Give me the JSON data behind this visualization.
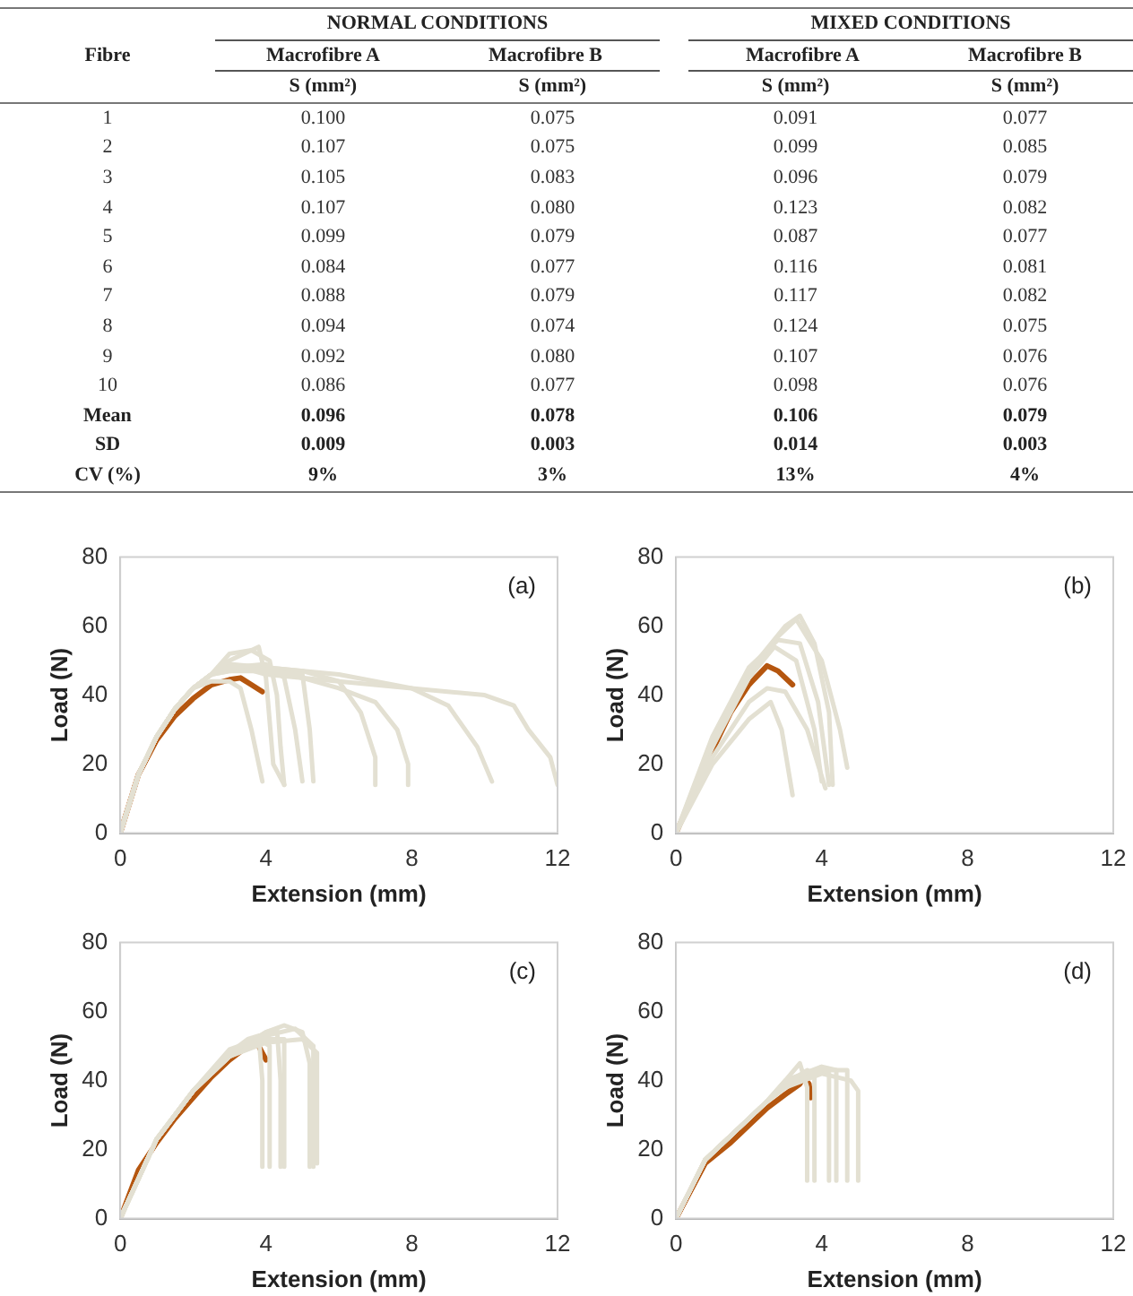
{
  "chart_data": [
    {
      "type": "heatmap",
      "ylabel": "Fibre",
      "categories": [
        "Macrofibre A",
        "Macrofibre B",
        "Macrofibre A",
        "Macrofibre B"
      ],
      "annotations": [
        "NORMAL CONDITIONS",
        "MIXED CONDITIONS",
        "S (mm²)",
        "S (mm²)",
        "S (mm²)",
        "S (mm²)"
      ],
      "y_categories": [
        "1",
        "2",
        "3",
        "4",
        "5",
        "6",
        "7",
        "8",
        "9",
        "10",
        "Mean",
        "SD",
        "CV (%)"
      ],
      "cells": [
        [
          0.1,
          0.075,
          0.091,
          0.077
        ],
        [
          0.107,
          0.075,
          0.099,
          0.085
        ],
        [
          0.105,
          0.083,
          0.096,
          0.079
        ],
        [
          0.107,
          0.08,
          0.123,
          0.082
        ],
        [
          0.099,
          0.079,
          0.087,
          0.077
        ],
        [
          0.084,
          0.077,
          0.116,
          0.081
        ],
        [
          0.088,
          0.079,
          0.117,
          0.082
        ],
        [
          0.094,
          0.074,
          0.124,
          0.075
        ],
        [
          0.092,
          0.08,
          0.107,
          0.076
        ],
        [
          0.086,
          0.077,
          0.098,
          0.076
        ],
        [
          0.096,
          0.078,
          0.106,
          0.079
        ],
        [
          0.009,
          0.003,
          0.014,
          0.003
        ],
        [
          9,
          3,
          13,
          4
        ]
      ],
      "cell_labels": [
        [
          "0.100",
          "0.075",
          "0.091",
          "0.077"
        ],
        [
          "0.107",
          "0.075",
          "0.099",
          "0.085"
        ],
        [
          "0.105",
          "0.083",
          "0.096",
          "0.079"
        ],
        [
          "0.107",
          "0.080",
          "0.123",
          "0.082"
        ],
        [
          "0.099",
          "0.079",
          "0.087",
          "0.077"
        ],
        [
          "0.084",
          "0.077",
          "0.116",
          "0.081"
        ],
        [
          "0.088",
          "0.079",
          "0.117",
          "0.082"
        ],
        [
          "0.094",
          "0.074",
          "0.124",
          "0.075"
        ],
        [
          "0.092",
          "0.080",
          "0.107",
          "0.076"
        ],
        [
          "0.086",
          "0.077",
          "0.098",
          "0.076"
        ],
        [
          "0.096",
          "0.078",
          "0.106",
          "0.079"
        ],
        [
          "0.009",
          "0.003",
          "0.014",
          "0.003"
        ],
        [
          "9%",
          "3%",
          "13%",
          "4%"
        ]
      ]
    },
    {
      "type": "line",
      "xlabel": "Extension (mm)",
      "ylabel": "Load (N)",
      "annotations": [
        "(a)"
      ],
      "xlim": [
        0,
        12
      ],
      "xticks": [
        0,
        4,
        8,
        12
      ],
      "ylim": [
        0,
        80
      ],
      "yticks": [
        0,
        20,
        40,
        60,
        80
      ],
      "grid": false,
      "legend": false,
      "marker": "none",
      "line_style": "solid",
      "series": [
        {
          "color": "#e3e0d2",
          "x": [
            0,
            0.5,
            1,
            1.5,
            2,
            2.5,
            3,
            3.3,
            3.6,
            3.9
          ],
          "values": [
            0,
            17,
            28,
            36,
            42,
            44,
            44,
            42,
            30,
            15
          ]
        },
        {
          "color": "#e3e0d2",
          "x": [
            0,
            0.5,
            1,
            1.5,
            2,
            2.5,
            3,
            3.8,
            4,
            4.2,
            4.5
          ],
          "values": [
            0,
            17,
            28,
            36,
            42,
            46,
            50,
            54,
            45,
            20,
            14
          ]
        },
        {
          "color": "#e3e0d2",
          "x": [
            0,
            0.5,
            1,
            1.5,
            2,
            2.5,
            3,
            4,
            4.5,
            4.8,
            5
          ],
          "values": [
            0,
            17,
            28,
            36,
            42,
            46,
            48,
            49,
            45,
            30,
            15
          ]
        },
        {
          "color": "#e3e0d2",
          "x": [
            0,
            0.5,
            1,
            1.5,
            2,
            2.5,
            3,
            4,
            5,
            5.2,
            5.3
          ],
          "values": [
            0,
            17,
            28,
            36,
            42,
            46,
            47,
            47,
            46,
            30,
            15
          ]
        },
        {
          "color": "#e3e0d2",
          "x": [
            0,
            0.5,
            1,
            1.5,
            2,
            2.5,
            3,
            4,
            5,
            6,
            6.6,
            7,
            7
          ],
          "values": [
            0,
            17,
            28,
            36,
            42,
            46,
            47,
            48,
            47,
            44,
            35,
            22,
            14
          ]
        },
        {
          "color": "#e3e0d2",
          "x": [
            0,
            0.5,
            1,
            1.5,
            2,
            2.5,
            3,
            4,
            5,
            6,
            7,
            7.6,
            7.9,
            7.9
          ],
          "values": [
            0,
            17,
            28,
            36,
            42,
            46,
            48,
            47,
            45,
            42,
            38,
            30,
            20,
            14
          ]
        },
        {
          "color": "#e3e0d2",
          "x": [
            0,
            0.5,
            1,
            1.5,
            2,
            2.5,
            3,
            4,
            6,
            8,
            9,
            9.8,
            10.2
          ],
          "values": [
            0,
            17,
            28,
            36,
            42,
            46,
            49,
            48,
            46,
            42,
            37,
            25,
            15
          ]
        },
        {
          "color": "#e3e0d2",
          "x": [
            0,
            0.5,
            1,
            1.5,
            2,
            2.5,
            3,
            4,
            6,
            8,
            10,
            10.8,
            11.2,
            11.8,
            12
          ],
          "values": [
            0,
            17,
            28,
            36,
            42,
            46,
            49,
            46,
            44,
            42,
            40,
            37,
            30,
            22,
            14
          ]
        },
        {
          "color": "#e3e0d2",
          "x": [
            0,
            0.5,
            1,
            1.5,
            2,
            2.5,
            3,
            3.6,
            4.1,
            4.3,
            4.4,
            4.5
          ],
          "values": [
            0,
            17,
            28,
            36,
            42,
            46,
            52,
            53,
            50,
            40,
            25,
            14
          ]
        },
        {
          "color": "#b5560f",
          "x": [
            0,
            0.5,
            1,
            1.5,
            2,
            2.5,
            3,
            3.3,
            3.6,
            3.9
          ],
          "values": [
            0,
            17,
            27,
            34,
            39,
            43,
            44.5,
            45,
            43,
            41
          ]
        }
      ]
    },
    {
      "type": "line",
      "xlabel": "Extension (mm)",
      "ylabel": "Load (N)",
      "annotations": [
        "(b)"
      ],
      "xlim": [
        0,
        12
      ],
      "xticks": [
        0,
        4,
        8,
        12
      ],
      "ylim": [
        0,
        80
      ],
      "yticks": [
        0,
        20,
        40,
        60,
        80
      ],
      "grid": false,
      "legend": false,
      "marker": "none",
      "line_style": "solid",
      "series": [
        {
          "color": "#e3e0d2",
          "x": [
            0,
            1,
            2,
            2.6,
            2.9,
            3.2
          ],
          "values": [
            0,
            20,
            33,
            38,
            30,
            11
          ]
        },
        {
          "color": "#e3e0d2",
          "x": [
            0,
            1,
            2,
            2.7,
            3.3,
            3.8,
            4.0
          ],
          "values": [
            0,
            27,
            45,
            54,
            50,
            30,
            15
          ]
        },
        {
          "color": "#e3e0d2",
          "x": [
            0,
            1,
            2,
            3,
            3.4,
            3.8,
            4.2,
            4.3
          ],
          "values": [
            0,
            25,
            47,
            60,
            63,
            55,
            35,
            14
          ]
        },
        {
          "color": "#e3e0d2",
          "x": [
            0,
            1,
            2,
            2.8,
            3.3,
            4,
            4.5,
            4.7
          ],
          "values": [
            0,
            25,
            45,
            57,
            62,
            50,
            30,
            19
          ]
        },
        {
          "color": "#e3e0d2",
          "x": [
            0,
            1,
            2,
            2.5,
            3,
            3.6,
            4.1
          ],
          "values": [
            0,
            22,
            38,
            42,
            41,
            30,
            13
          ]
        },
        {
          "color": "#e3e0d2",
          "x": [
            0,
            1,
            2,
            2.8,
            3.4,
            3.9,
            4.2
          ],
          "values": [
            0,
            28,
            48,
            56,
            55,
            38,
            14
          ]
        },
        {
          "color": "#b5560f",
          "x": [
            0,
            0.5,
            1,
            1.5,
            2,
            2.5,
            2.8,
            3.2
          ],
          "values": [
            0,
            12,
            24,
            35,
            43,
            48.5,
            47,
            43
          ]
        }
      ]
    },
    {
      "type": "line",
      "xlabel": "Extension (mm)",
      "ylabel": "Load (N)",
      "annotations": [
        "(c)"
      ],
      "xlim": [
        0,
        12
      ],
      "xticks": [
        0,
        4,
        8,
        12
      ],
      "ylim": [
        0,
        80
      ],
      "yticks": [
        0,
        20,
        40,
        60,
        80
      ],
      "grid": false,
      "legend": false,
      "marker": "none",
      "line_style": "solid",
      "series": [
        {
          "color": "#e3e0d2",
          "x": [
            0,
            1,
            2,
            3,
            3.5,
            3.8,
            3.9,
            3.9
          ],
          "values": [
            0,
            23,
            37,
            48,
            52,
            53,
            40,
            15
          ]
        },
        {
          "color": "#e3e0d2",
          "x": [
            0,
            1,
            2,
            3,
            3.8,
            4.1,
            4.1
          ],
          "values": [
            0,
            23,
            37,
            49,
            52,
            50,
            15
          ]
        },
        {
          "color": "#e3e0d2",
          "x": [
            0,
            1,
            2,
            3,
            4,
            4.3,
            4.4,
            4.4
          ],
          "values": [
            0,
            23,
            37,
            48,
            54,
            55,
            40,
            15
          ]
        },
        {
          "color": "#e3e0d2",
          "x": [
            0,
            1,
            2,
            3,
            4,
            4.5,
            4.5
          ],
          "values": [
            0,
            23,
            37,
            47,
            52,
            52,
            15
          ]
        },
        {
          "color": "#e3e0d2",
          "x": [
            0,
            1,
            2,
            3,
            4,
            4.5,
            5,
            5.2,
            5.2
          ],
          "values": [
            0,
            23,
            37,
            47,
            54,
            56,
            54,
            45,
            15
          ]
        },
        {
          "color": "#e3e0d2",
          "x": [
            0,
            1,
            2,
            3,
            4,
            4.8,
            5.3,
            5.3
          ],
          "values": [
            0,
            23,
            37,
            48,
            53,
            55,
            50,
            15
          ]
        },
        {
          "color": "#e3e0d2",
          "x": [
            0,
            1,
            2,
            3,
            4,
            5,
            5.4,
            5.4
          ],
          "values": [
            0,
            23,
            37,
            47,
            51,
            52,
            48,
            16
          ]
        },
        {
          "color": "#b5560f",
          "x": [
            0,
            0.5,
            1,
            1.5,
            2,
            2.5,
            3,
            3.5,
            3.75,
            3.9,
            4.0
          ],
          "values": [
            0,
            14,
            22,
            29,
            35,
            41,
            46,
            50,
            51,
            48,
            46
          ]
        }
      ]
    },
    {
      "type": "line",
      "xlabel": "Extension (mm)",
      "ylabel": "Load (N)",
      "annotations": [
        "(d)"
      ],
      "xlim": [
        0,
        12
      ],
      "xticks": [
        0,
        4,
        8,
        12
      ],
      "ylim": [
        0,
        80
      ],
      "yticks": [
        0,
        20,
        40,
        60,
        80
      ],
      "grid": false,
      "legend": false,
      "marker": "none",
      "line_style": "solid",
      "series": [
        {
          "color": "#e3e0d2",
          "x": [
            0,
            0.8,
            1.5,
            2.5,
            3,
            3.4,
            3.6,
            3.6
          ],
          "values": [
            0,
            17,
            24,
            34,
            40,
            45,
            38,
            11
          ]
        },
        {
          "color": "#e3e0d2",
          "x": [
            0,
            0.8,
            1.5,
            2.5,
            3,
            3.6,
            3.8,
            3.8
          ],
          "values": [
            0,
            17,
            24,
            34,
            39,
            43,
            42,
            11
          ]
        },
        {
          "color": "#e3e0d2",
          "x": [
            0,
            0.8,
            1.5,
            2.5,
            3,
            4,
            4.2,
            4.2
          ],
          "values": [
            0,
            17,
            24,
            34,
            40,
            44,
            42,
            11
          ]
        },
        {
          "color": "#e3e0d2",
          "x": [
            0,
            0.8,
            1.5,
            2.5,
            3,
            4,
            4.4,
            4.4
          ],
          "values": [
            0,
            17,
            24,
            34,
            39,
            44,
            43,
            11
          ]
        },
        {
          "color": "#e3e0d2",
          "x": [
            0,
            0.8,
            1.5,
            2.5,
            3,
            4,
            4.7,
            4.7
          ],
          "values": [
            0,
            17,
            24,
            34,
            38,
            43,
            43,
            11
          ]
        },
        {
          "color": "#e3e0d2",
          "x": [
            0,
            0.8,
            1.5,
            2.5,
            3,
            4,
            4.8,
            5.0,
            5.0
          ],
          "values": [
            0,
            17,
            24,
            34,
            38,
            42,
            40,
            37,
            11
          ]
        },
        {
          "color": "#b5560f",
          "x": [
            0,
            0.5,
            0.8,
            1.5,
            2,
            2.5,
            3,
            3.4,
            3.5,
            3.65,
            3.7
          ],
          "values": [
            0,
            10,
            16,
            22,
            27,
            32,
            36,
            39,
            41,
            39,
            35
          ]
        }
      ]
    }
  ]
}
